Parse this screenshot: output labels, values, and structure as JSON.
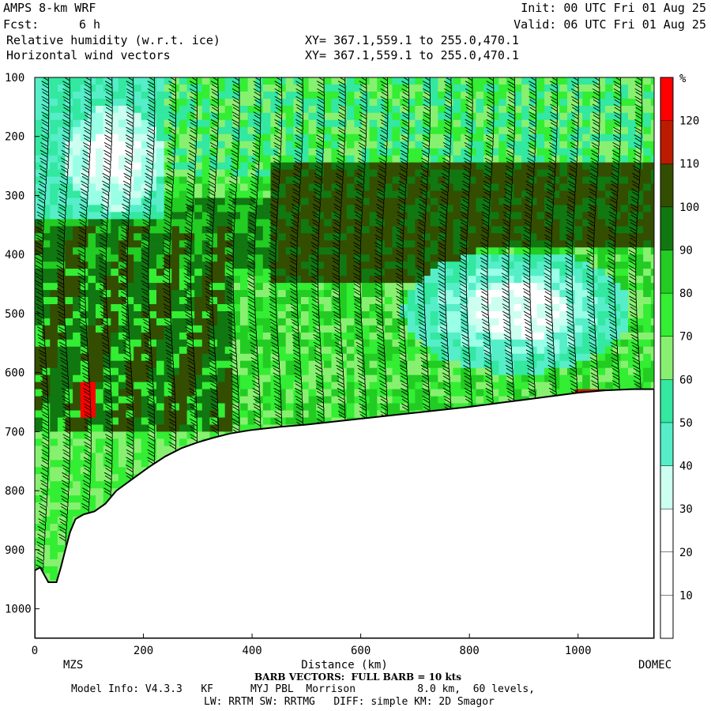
{
  "header": {
    "model": "AMPS 8-km WRF",
    "fcst_label": "Fcst:",
    "fcst_value": "6 h",
    "init": "Init: 00 UTC Fri 01 Aug 25",
    "valid": "Valid: 06 UTC Fri 01 Aug 25",
    "field1": "Relative humidity (w.r.t. ice)",
    "field2": "Horizontal wind vectors",
    "xy1": "XY= 367.1,559.1 to 255.0,470.1",
    "xy2": "XY= 367.1,559.1 to 255.0,470.1"
  },
  "footer": {
    "left_station": "MZS",
    "right_station": "DOMEC",
    "barb_note": "BARB VECTORS:  FULL BARB = 10 kts",
    "model_info": "Model Info: V4.3.3   KF      MYJ PBL  Morrison          8.0 km,  60 levels,",
    "physics": "LW: RRTM SW: RRTMG   DIFF: simple KM: 2D Smagor"
  },
  "colors": {
    "very_dry": "#ffffff",
    "pale_cyan": "#ccfff0",
    "light_cyan": "#99ffe6",
    "cyan": "#55eec8",
    "aqua_green": "#33e8a0",
    "light_green": "#88f070",
    "green": "#33ee33",
    "mid_green": "#22cc22",
    "dark_green": "#117711",
    "olive": "#334e00",
    "dark_red": "#bb1c00",
    "red": "#ff0000"
  },
  "chart_data": {
    "type": "heatmap",
    "title": "Relative humidity (w.r.t. ice)",
    "overlay": "Horizontal wind vectors",
    "xlabel": "Distance (km)",
    "ylabel": "",
    "x_range": [
      0,
      1140
    ],
    "y_range_hpa": [
      100,
      1050
    ],
    "y_inverted": true,
    "x_ticks": [
      0,
      200,
      400,
      600,
      800,
      1000
    ],
    "y_ticks": [
      100,
      200,
      300,
      400,
      500,
      600,
      700,
      800,
      900,
      1000
    ],
    "colorbar": {
      "unit": "%",
      "labels": [
        10,
        20,
        30,
        40,
        50,
        60,
        70,
        80,
        90,
        100,
        110,
        120
      ],
      "bins": [
        {
          "max": 10,
          "color": "#ffffff"
        },
        {
          "max": 20,
          "color": "#ffffff"
        },
        {
          "max": 30,
          "color": "#ffffff"
        },
        {
          "max": 40,
          "color": "#ccfff0"
        },
        {
          "max": 50,
          "color": "#55eec8"
        },
        {
          "max": 60,
          "color": "#33e8a0"
        },
        {
          "max": 70,
          "color": "#88f070"
        },
        {
          "max": 80,
          "color": "#33ee33"
        },
        {
          "max": 90,
          "color": "#22cc22"
        },
        {
          "max": 100,
          "color": "#117711"
        },
        {
          "max": 110,
          "color": "#334e00"
        },
        {
          "max": 120,
          "color": "#bb1c00"
        },
        {
          "max": 130,
          "color": "#ff0000"
        }
      ]
    },
    "terrain_hpa": [
      [
        0,
        935
      ],
      [
        10,
        930
      ],
      [
        25,
        955
      ],
      [
        40,
        955
      ],
      [
        48,
        930
      ],
      [
        55,
        905
      ],
      [
        65,
        870
      ],
      [
        75,
        848
      ],
      [
        90,
        840
      ],
      [
        110,
        835
      ],
      [
        130,
        822
      ],
      [
        150,
        800
      ],
      [
        180,
        780
      ],
      [
        210,
        760
      ],
      [
        240,
        742
      ],
      [
        270,
        728
      ],
      [
        300,
        718
      ],
      [
        330,
        710
      ],
      [
        360,
        703
      ],
      [
        400,
        697
      ],
      [
        450,
        692
      ],
      [
        500,
        688
      ],
      [
        550,
        683
      ],
      [
        600,
        678
      ],
      [
        650,
        673
      ],
      [
        700,
        668
      ],
      [
        750,
        663
      ],
      [
        800,
        658
      ],
      [
        850,
        652
      ],
      [
        900,
        646
      ],
      [
        950,
        640
      ],
      [
        1000,
        634
      ],
      [
        1050,
        630
      ],
      [
        1100,
        628
      ],
      [
        1140,
        628
      ]
    ],
    "stations": [
      {
        "name": "MZS",
        "km": 0
      },
      {
        "name": "DOMEC",
        "km": 1140
      }
    ]
  }
}
